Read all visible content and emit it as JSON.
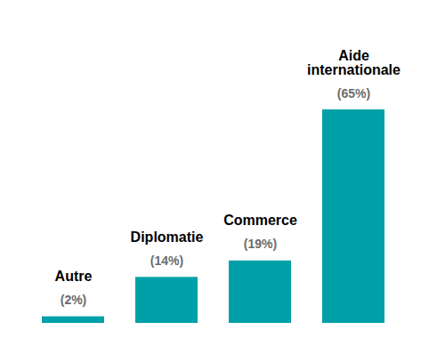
{
  "chart_data": {
    "type": "bar",
    "categories": [
      "Autre",
      "Diplomatie",
      "Commerce",
      "Aide internationale"
    ],
    "values": [
      2,
      14,
      19,
      65
    ],
    "value_labels": [
      "(2%)",
      "(14%)",
      "(19%)",
      "(65%)"
    ],
    "color": "#00a0a8",
    "ylim": [
      0,
      65
    ],
    "data_labels": true,
    "tick_labels": false
  }
}
